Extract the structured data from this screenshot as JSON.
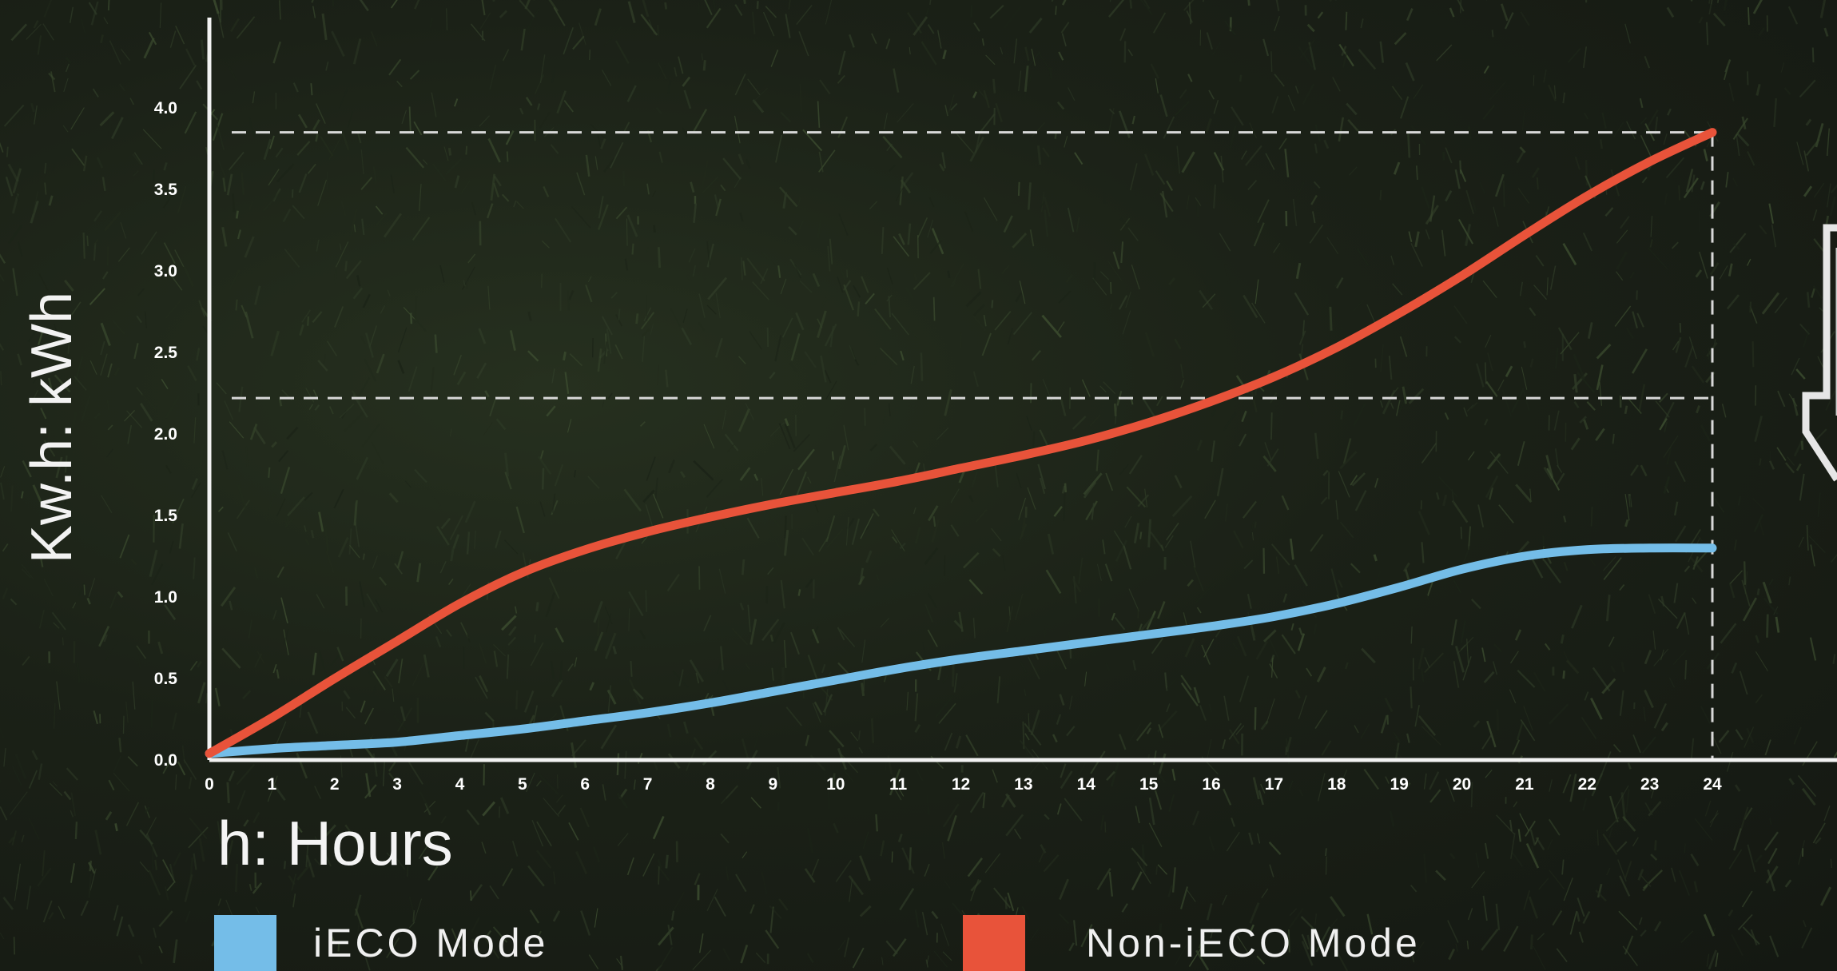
{
  "chart_data": {
    "type": "line",
    "xlabel": "h: Hours",
    "ylabel": "Kw.h: kWh",
    "x": [
      0,
      1,
      2,
      3,
      4,
      5,
      6,
      7,
      8,
      9,
      10,
      11,
      12,
      13,
      14,
      15,
      16,
      17,
      18,
      19,
      20,
      21,
      22,
      23,
      24
    ],
    "xlim": [
      0,
      24
    ],
    "ylim": [
      0,
      4.0
    ],
    "x_ticks": [
      "0",
      "1",
      "2",
      "3",
      "4",
      "5",
      "6",
      "7",
      "8",
      "9",
      "10",
      "11",
      "12",
      "13",
      "14",
      "15",
      "16",
      "17",
      "18",
      "19",
      "20",
      "21",
      "22",
      "23",
      "24"
    ],
    "y_ticks": [
      "0.0",
      "0.5",
      "1.0",
      "1.5",
      "2.0",
      "2.5",
      "3.0",
      "3.5",
      "4.0"
    ],
    "reference_lines": [
      {
        "orientation": "horizontal",
        "y": 3.85,
        "style": "dashed"
      },
      {
        "orientation": "horizontal",
        "y": 2.22,
        "style": "dashed"
      },
      {
        "orientation": "vertical",
        "x": 24,
        "style": "dashed"
      }
    ],
    "series": [
      {
        "name": "iECO Mode",
        "color": "#74bde8",
        "values": [
          0.04,
          0.07,
          0.09,
          0.11,
          0.15,
          0.19,
          0.24,
          0.29,
          0.35,
          0.42,
          0.49,
          0.56,
          0.62,
          0.67,
          0.72,
          0.77,
          0.82,
          0.88,
          0.96,
          1.06,
          1.17,
          1.25,
          1.29,
          1.3,
          1.3
        ]
      },
      {
        "name": "Non-iECO Mode",
        "color": "#e8533a",
        "values": [
          0.04,
          0.26,
          0.5,
          0.73,
          0.96,
          1.15,
          1.29,
          1.4,
          1.49,
          1.57,
          1.64,
          1.71,
          1.79,
          1.87,
          1.96,
          2.07,
          2.2,
          2.35,
          2.53,
          2.74,
          2.97,
          3.22,
          3.46,
          3.67,
          3.85
        ]
      }
    ],
    "legend": [
      {
        "label": "iECO Mode",
        "color": "#74bde8"
      },
      {
        "label": "Non-iECO Mode",
        "color": "#e8533a"
      }
    ],
    "grid": false
  }
}
